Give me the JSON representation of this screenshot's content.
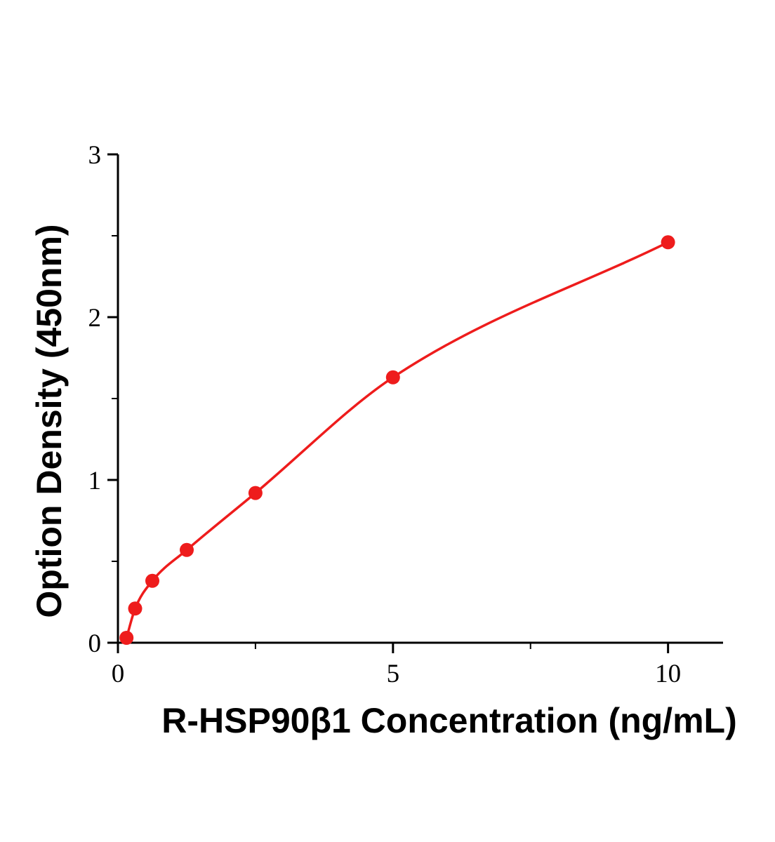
{
  "chart_data": {
    "type": "scatter",
    "title": "",
    "xlabel": "R-HSP90β1 Concentration (ng/mL)",
    "ylabel": "Option Density (450nm)",
    "xlim": [
      0,
      11
    ],
    "ylim": [
      0,
      3
    ],
    "x_major_ticks": [
      0,
      5,
      10
    ],
    "x_minor_ticks": [
      2.5,
      7.5
    ],
    "y_major_ticks": [
      0,
      1,
      2,
      3
    ],
    "y_minor_ticks": [
      0.5,
      1.5,
      2.5
    ],
    "points": [
      {
        "x": 0.156,
        "y": 0.03
      },
      {
        "x": 0.3125,
        "y": 0.21
      },
      {
        "x": 0.625,
        "y": 0.38
      },
      {
        "x": 1.25,
        "y": 0.57
      },
      {
        "x": 2.5,
        "y": 0.92
      },
      {
        "x": 5,
        "y": 1.63
      },
      {
        "x": 10,
        "y": 2.46
      }
    ],
    "curve": "smooth-through-points",
    "legend": "none",
    "grid": "off",
    "point_color": "#ee1c1c",
    "curve_color": "#ee1c1c",
    "axis_color": "#000000",
    "tick_label_color": "#000000"
  }
}
